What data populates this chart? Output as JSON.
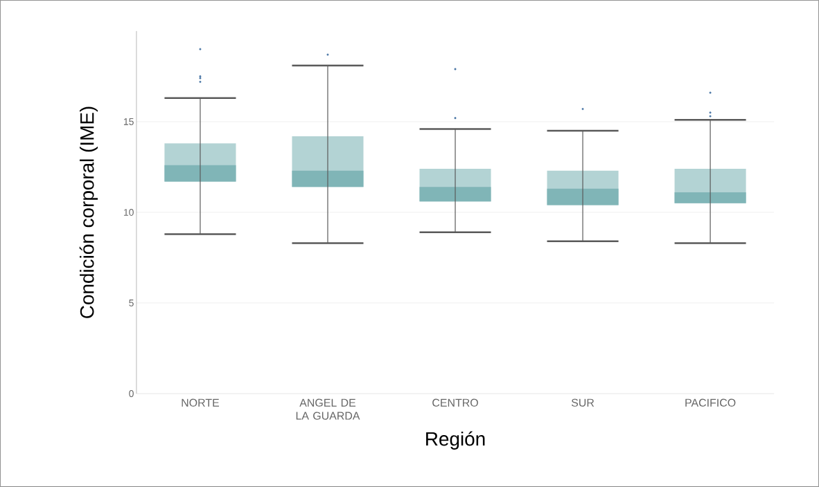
{
  "chart_data": {
    "type": "box",
    "xlabel": "Región",
    "ylabel": "Condición corporal (IME)",
    "categories": [
      "NORTE",
      "ANGEL DE LA GUARDA",
      "CENTRO",
      "SUR",
      "PACIFICO"
    ],
    "series": [
      {
        "color": "#80b5b7",
        "boxes": [
          {
            "low": 8.8,
            "q1": 11.7,
            "median": 12.6,
            "q3": 13.8,
            "high": 16.3,
            "outliers": [
              19.0,
              17.5,
              17.4,
              17.2
            ]
          },
          {
            "low": 8.3,
            "q1": 11.4,
            "median": 12.3,
            "q3": 14.2,
            "high": 18.1,
            "outliers": [
              18.7
            ]
          },
          {
            "low": 8.9,
            "q1": 10.6,
            "median": 11.4,
            "q3": 12.4,
            "high": 14.6,
            "outliers": [
              17.9,
              15.2
            ]
          },
          {
            "low": 8.4,
            "q1": 10.4,
            "median": 11.3,
            "q3": 12.3,
            "high": 14.5,
            "outliers": [
              15.7
            ]
          },
          {
            "low": 8.3,
            "q1": 10.5,
            "median": 11.1,
            "q3": 12.4,
            "high": 15.1,
            "outliers": [
              16.6,
              15.5,
              15.3
            ]
          }
        ]
      }
    ],
    "ylim": [
      0,
      20
    ],
    "yticks": [
      0,
      5,
      10,
      15
    ],
    "grid": "y"
  }
}
